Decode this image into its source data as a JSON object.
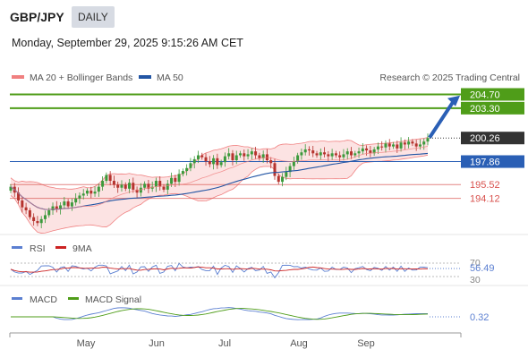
{
  "header": {
    "pair": "GBP/JPY",
    "period": "DAILY",
    "datetime": "Monday, September 29, 2025 9:15:26 AM CET"
  },
  "legend": {
    "bb_label": "MA 20 + Bollinger Bands",
    "ma50_label": "MA 50",
    "credit": "Research © 2025 Trading Central"
  },
  "rsi": {
    "label": "RSI",
    "ma_label": "9MA",
    "value": "56.49",
    "upper": "70",
    "lower": "30"
  },
  "macd": {
    "label": "MACD",
    "signal_label": "MACD Signal",
    "value": "0.32"
  },
  "colors": {
    "bb": "#f08080",
    "ma50": "#2255a4",
    "resistance": "#4f9d19",
    "support": "#d9534f",
    "pivot": "#2a5fb5",
    "current": "#333333",
    "rsi": "#5b7fd1",
    "rsi_ma": "#cc2222",
    "macd": "#5b7fd1",
    "macd_signal": "#4f9d19"
  },
  "chart_data": {
    "type": "candlestick",
    "x_axis": {
      "ticks": [
        "May",
        "Jun",
        "Jul",
        "Aug",
        "Sep"
      ]
    },
    "price_range": [
      190.8,
      205.2
    ],
    "current_price": "200.26",
    "levels": [
      {
        "value": "204.70",
        "kind": "resistance",
        "color": "#4f9d19"
      },
      {
        "value": "203.30",
        "kind": "resistance",
        "color": "#4f9d19"
      },
      {
        "value": "197.86",
        "kind": "pivot",
        "color": "#2a5fb5"
      },
      {
        "value": "195.52",
        "kind": "support",
        "color": "#d9534f"
      },
      {
        "value": "194.12",
        "kind": "support",
        "color": "#d9534f"
      }
    ],
    "forecast_arrow": {
      "from": 200.3,
      "to": 204.4,
      "direction": "up"
    },
    "close_series": [
      195.3,
      194.7,
      193.9,
      193.2,
      192.9,
      192.2,
      191.8,
      191.6,
      192.0,
      192.4,
      192.9,
      193.3,
      193.0,
      193.4,
      193.8,
      193.3,
      193.7,
      194.1,
      194.4,
      194.6,
      194.9,
      194.6,
      194.8,
      195.3,
      195.9,
      196.5,
      195.9,
      195.5,
      195.2,
      195.5,
      195.1,
      195.7,
      195.0,
      194.7,
      195.2,
      195.6,
      195.1,
      195.3,
      195.9,
      195.3,
      195.0,
      195.6,
      196.2,
      195.8,
      196.6,
      196.9,
      197.2,
      197.7,
      198.1,
      198.5,
      198.3,
      197.9,
      197.6,
      198.2,
      197.5,
      197.8,
      198.4,
      198.7,
      198.0,
      198.5,
      198.7,
      198.4,
      198.6,
      198.9,
      198.5,
      198.2,
      198.6,
      198.0,
      197.7,
      196.4,
      195.8,
      196.3,
      196.8,
      197.4,
      197.9,
      198.5,
      198.8,
      199.1,
      199.0,
      198.7,
      198.5,
      198.8,
      198.6,
      198.4,
      198.7,
      198.5,
      198.3,
      198.6,
      198.9,
      198.5,
      198.7,
      198.9,
      199.2,
      199.0,
      198.7,
      199.1,
      199.4,
      199.3,
      199.7,
      199.4,
      199.6,
      199.2,
      199.8,
      199.6,
      199.9,
      199.7,
      199.4,
      199.6,
      199.9,
      200.26
    ],
    "indicators": [
      "MA 20 + Bollinger Bands",
      "MA 50",
      "RSI",
      "9MA",
      "MACD",
      "MACD Signal"
    ]
  }
}
